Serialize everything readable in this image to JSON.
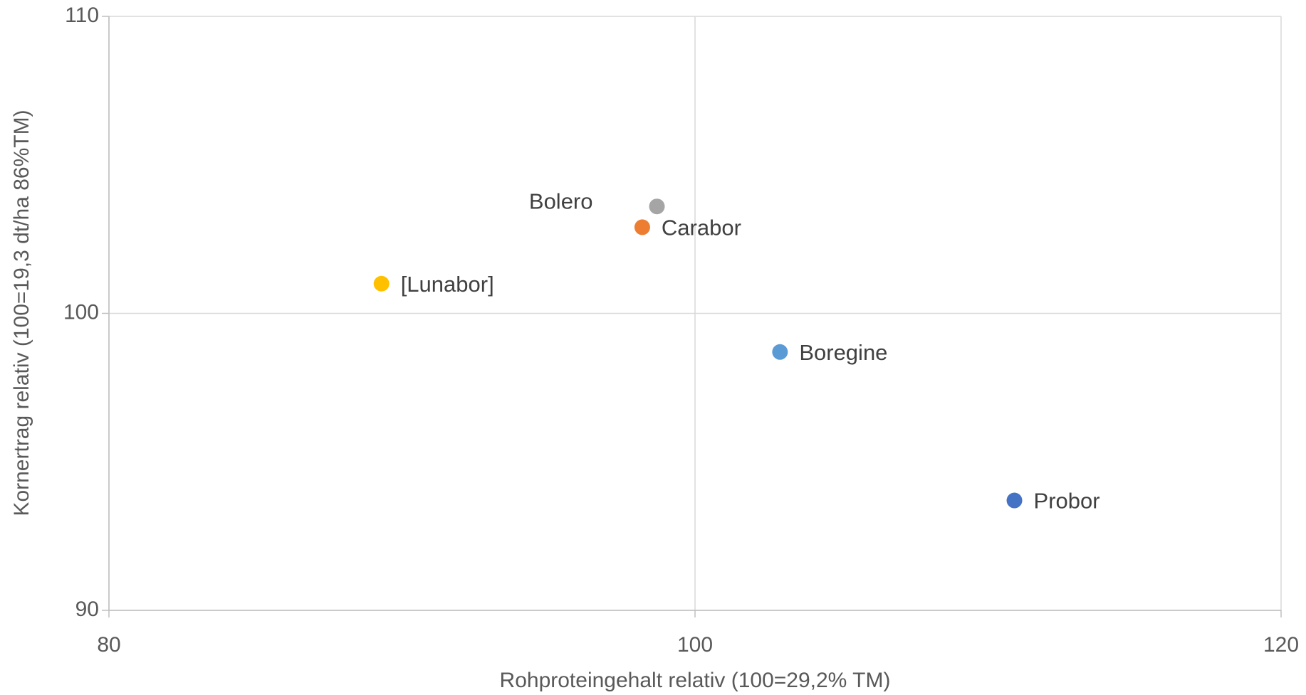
{
  "chart_data": {
    "type": "scatter",
    "x_label": "Rohproteingehalt relativ (100=29,2% TM)",
    "y_label": "Kornertrag relativ (100=19,3 dt/ha 86%TM)",
    "xlim": [
      80,
      120
    ],
    "xticks": [
      80,
      100,
      120
    ],
    "ylim": [
      90,
      110
    ],
    "yticks": [
      90,
      100,
      110
    ],
    "grid": true,
    "series": [
      {
        "name": "Bolero",
        "color": "#a5a5a5",
        "x": [
          98.7
        ],
        "y": [
          103.6
        ],
        "label_position": "left"
      },
      {
        "name": "Carabor",
        "color": "#ed7d31",
        "x": [
          98.2
        ],
        "y": [
          102.9
        ],
        "label_position": "right"
      },
      {
        "name": "[Lunabor]",
        "color": "#ffc000",
        "x": [
          89.3
        ],
        "y": [
          101.0
        ],
        "label_position": "right"
      },
      {
        "name": "Boregine",
        "color": "#5b9bd5",
        "x": [
          102.9
        ],
        "y": [
          98.7
        ],
        "label_position": "right"
      },
      {
        "name": "Probor",
        "color": "#4472c4",
        "x": [
          110.9
        ],
        "y": [
          93.7
        ],
        "label_position": "right"
      }
    ]
  }
}
